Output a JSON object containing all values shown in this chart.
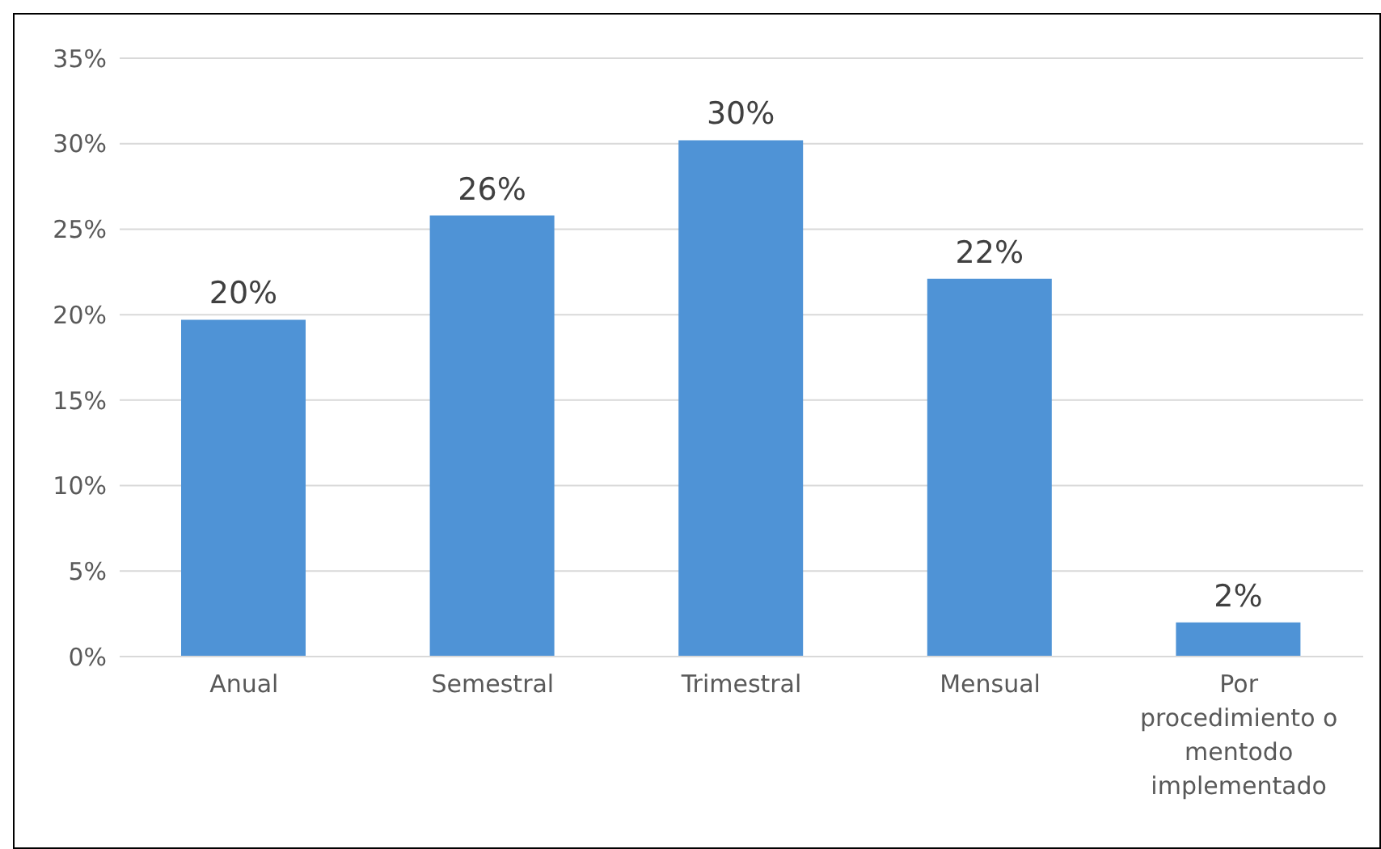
{
  "chart_data": {
    "type": "bar",
    "categories": [
      "Anual",
      "Semestral",
      "Trimestral",
      "Mensual",
      "Por procedimiento o mentodo implementado"
    ],
    "values": [
      19.7,
      25.8,
      30.2,
      22.1,
      2
    ],
    "value_labels": [
      "20%",
      "26%",
      "30%",
      "22%",
      "2%"
    ],
    "color": "#4f93d6",
    "ylim": [
      0,
      35
    ],
    "yticks": [
      {
        "value": 0,
        "label": "0%"
      },
      {
        "value": 5,
        "label": "5%"
      },
      {
        "value": 10,
        "label": "10%"
      },
      {
        "value": 15,
        "label": "15%"
      },
      {
        "value": 20,
        "label": "20%"
      },
      {
        "value": 25,
        "label": "25%"
      },
      {
        "value": 30,
        "label": "30%"
      },
      {
        "value": 35,
        "label": "35%"
      }
    ],
    "grid": "y"
  }
}
